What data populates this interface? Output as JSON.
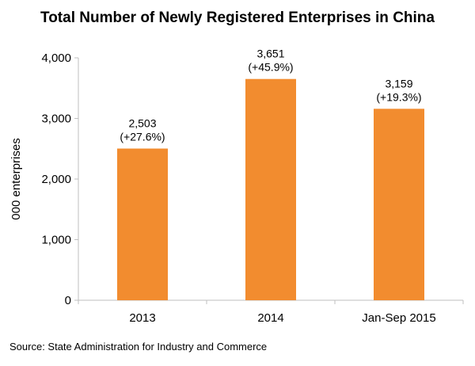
{
  "chart_data": {
    "type": "bar",
    "title": "Total Number of Newly Registered Enterprises in China",
    "xlabel": "",
    "ylabel": "000 enterprises",
    "categories": [
      "2013",
      "2014",
      "Jan-Sep 2015"
    ],
    "series": [
      {
        "values": [
          2503,
          3651,
          3159
        ],
        "data_labels": [
          [
            "2,503",
            "(+27.6%)"
          ],
          [
            "3,651",
            "(+45.9%)"
          ],
          [
            "3,159",
            "(+19.3%)"
          ]
        ]
      }
    ],
    "ylim": [
      0,
      4000
    ],
    "yticks": [
      0,
      1000,
      2000,
      3000,
      4000
    ],
    "ytick_labels": [
      "0",
      "1,000",
      "2,000",
      "3,000",
      "4,000"
    ],
    "grid": false,
    "legend": "none",
    "bar_color": "#f28c2f",
    "axis_color": "#bfbfbf"
  },
  "source": "Source: State Administration for Industry and Commerce"
}
